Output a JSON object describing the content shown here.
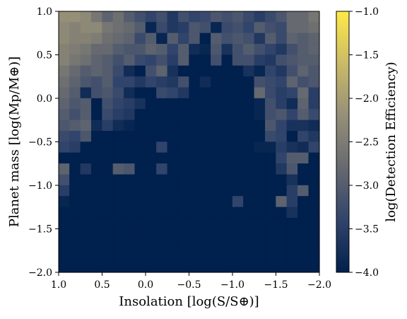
{
  "chart_data": {
    "type": "heatmap",
    "xlabel": "Insolation [log(S/S⊕)]",
    "ylabel": "Planet mass [log(Mp/M⊕)]",
    "colorbar_label": "log(Detection Efficiency)",
    "xlim": [
      1.0,
      -2.0
    ],
    "ylim": [
      -2.0,
      1.0
    ],
    "clim": [
      -4.0,
      -1.0
    ],
    "colormap": "cividis",
    "colormap_stops": [
      "#00204D",
      "#31446B",
      "#666970",
      "#958F78",
      "#CBBA69",
      "#FFEA46"
    ],
    "x_bins": 24,
    "y_bins": 24,
    "x_ticks": [
      "1.0",
      "0.5",
      "0.0",
      "−0.5",
      "−1.0",
      "−1.5",
      "−2.0"
    ],
    "y_ticks": [
      "1.0",
      "0.5",
      "0.0",
      "−0.5",
      "−1.0",
      "−1.5",
      "−2.0"
    ],
    "colorbar_ticks": [
      "−1.0",
      "−1.5",
      "−2.0",
      "−2.5",
      "−3.0",
      "−3.5",
      "−4.0"
    ],
    "cell_values_top_row_first": [
      [
        -2.2,
        -2.2,
        -2.3,
        -2.6,
        -2.9,
        -2.7,
        -3.0,
        -3.2,
        -3.4,
        -3.2,
        -3.6,
        -3.2,
        -3.4,
        -3.3,
        -3.1,
        -3.2,
        -3.1,
        -3.3,
        -3.5,
        -3.3,
        -3.1,
        -2.8,
        -2.8,
        -2.6
      ],
      [
        -2.3,
        -2.4,
        -2.3,
        -2.3,
        -2.6,
        -2.7,
        -2.8,
        -3.0,
        -3.9,
        -3.3,
        -3.6,
        -3.5,
        -3.1,
        -3.2,
        -3.9,
        -3.3,
        -3.2,
        -3.4,
        -3.0,
        -3.2,
        -3.3,
        -2.8,
        -2.8,
        -2.7
      ],
      [
        -2.3,
        -2.4,
        -2.4,
        -2.5,
        -2.7,
        -2.8,
        -2.9,
        -3.3,
        -3.0,
        -3.9,
        -3.0,
        -3.4,
        -3.1,
        -4.0,
        -3.0,
        -3.2,
        -3.1,
        -3.2,
        -3.6,
        -3.0,
        -3.3,
        -2.9,
        -3.0,
        -2.9
      ],
      [
        -2.4,
        -2.5,
        -2.6,
        -2.8,
        -2.8,
        -3.0,
        -3.1,
        -3.1,
        -2.9,
        -3.0,
        -3.4,
        -3.0,
        -3.8,
        -3.9,
        -3.1,
        -3.7,
        -3.2,
        -3.0,
        -3.2,
        -3.4,
        -3.6,
        -3.2,
        -3.0,
        -2.9
      ],
      [
        -2.4,
        -2.6,
        -2.7,
        -2.9,
        -3.0,
        -3.2,
        -3.0,
        -3.3,
        -3.4,
        -3.2,
        -3.5,
        -3.0,
        -4.0,
        -4.0,
        -3.2,
        -4.0,
        -3.2,
        -3.2,
        -3.5,
        -3.6,
        -3.2,
        -3.1,
        -3.0,
        -3.0
      ],
      [
        -2.6,
        -2.8,
        -3.0,
        -2.9,
        -3.0,
        -3.3,
        -3.8,
        -4.0,
        -3.2,
        -2.9,
        -3.7,
        -4.0,
        -4.0,
        -4.0,
        -4.0,
        -4.0,
        -4.0,
        -3.7,
        -3.9,
        -3.4,
        -3.6,
        -3.2,
        -2.9,
        -3.1
      ],
      [
        -2.7,
        -2.9,
        -3.1,
        -3.2,
        -3.0,
        -3.4,
        -3.4,
        -3.6,
        -3.4,
        -3.5,
        -3.6,
        -3.2,
        -4.0,
        -3.8,
        -4.0,
        -4.0,
        -4.0,
        -4.0,
        -3.2,
        -3.3,
        -3.4,
        -2.9,
        -3.2,
        -3.1
      ],
      [
        -2.8,
        -3.0,
        -3.8,
        -3.2,
        -3.1,
        -3.3,
        -3.8,
        -4.0,
        -4.0,
        -3.3,
        -3.4,
        -3.6,
        -4.0,
        -4.0,
        -4.0,
        -4.0,
        -4.0,
        -4.0,
        -2.8,
        -3.3,
        -3.5,
        -3.4,
        -2.8,
        -3.5
      ],
      [
        -2.9,
        -3.1,
        -3.0,
        -4.0,
        -3.2,
        -3.4,
        -3.5,
        -3.7,
        -4.0,
        -4.0,
        -4.0,
        -4.0,
        -4.0,
        -4.0,
        -4.0,
        -4.0,
        -4.0,
        -4.0,
        -3.9,
        -3.2,
        -3.5,
        -3.8,
        -2.9,
        -3.5
      ],
      [
        -3.0,
        -3.2,
        -3.0,
        -4.0,
        -3.3,
        -3.5,
        -3.6,
        -4.0,
        -4.0,
        -4.0,
        -4.0,
        -4.0,
        -4.0,
        -4.0,
        -4.0,
        -4.0,
        -4.0,
        -4.0,
        -3.9,
        -3.2,
        -3.1,
        -3.4,
        -3.0,
        -3.3
      ],
      [
        -3.1,
        -3.0,
        -2.9,
        -3.8,
        -3.5,
        -3.8,
        -3.9,
        -4.0,
        -4.0,
        -4.0,
        -4.0,
        -4.0,
        -4.0,
        -4.0,
        -4.0,
        -4.0,
        -4.0,
        -4.0,
        -4.0,
        -3.1,
        -3.4,
        -3.7,
        -3.7,
        -3.8
      ],
      [
        -3.3,
        -3.4,
        -3.1,
        -4.0,
        -4.0,
        -4.0,
        -4.0,
        -4.0,
        -4.0,
        -4.0,
        -4.0,
        -4.0,
        -4.0,
        -4.0,
        -4.0,
        -4.0,
        -4.0,
        -4.0,
        -4.0,
        -3.3,
        -3.4,
        -4.0,
        -3.4,
        -3.6
      ],
      [
        -3.4,
        -3.5,
        -4.0,
        -4.0,
        -4.0,
        -4.0,
        -4.0,
        -4.0,
        -4.0,
        -3.4,
        -4.0,
        -4.0,
        -4.0,
        -4.0,
        -4.0,
        -4.0,
        -4.0,
        -4.0,
        -3.9,
        -3.9,
        -3.5,
        -3.7,
        -3.8,
        -3.4
      ],
      [
        -4.0,
        -4.0,
        -4.0,
        -4.0,
        -4.0,
        -4.0,
        -4.0,
        -4.0,
        -4.0,
        -4.0,
        -4.0,
        -4.0,
        -4.0,
        -4.0,
        -4.0,
        -4.0,
        -4.0,
        -4.0,
        -4.0,
        -4.0,
        -3.4,
        -3.0,
        -3.0,
        -4.0
      ],
      [
        -2.9,
        -4.0,
        -3.6,
        -4.0,
        -4.0,
        -3.0,
        -3.1,
        -4.0,
        -4.0,
        -3.4,
        -4.0,
        -4.0,
        -4.0,
        -4.0,
        -4.0,
        -4.0,
        -4.0,
        -4.0,
        -4.0,
        -4.0,
        -3.6,
        -3.1,
        -4.0,
        -4.0
      ],
      [
        -3.2,
        -4.0,
        -4.0,
        -4.0,
        -4.0,
        -4.0,
        -4.0,
        -4.0,
        -4.0,
        -4.0,
        -4.0,
        -4.0,
        -4.0,
        -4.0,
        -4.0,
        -4.0,
        -4.0,
        -4.0,
        -4.0,
        -4.0,
        -4.0,
        -3.7,
        -4.0,
        -4.0
      ],
      [
        -3.5,
        -4.0,
        -4.0,
        -4.0,
        -4.0,
        -4.0,
        -4.0,
        -4.0,
        -4.0,
        -4.0,
        -4.0,
        -4.0,
        -4.0,
        -4.0,
        -4.0,
        -4.0,
        -4.0,
        -4.0,
        -4.0,
        -4.0,
        -4.0,
        -3.5,
        -3.0,
        -4.0
      ],
      [
        -3.9,
        -4.0,
        -4.0,
        -4.0,
        -4.0,
        -4.0,
        -4.0,
        -4.0,
        -4.0,
        -4.0,
        -4.0,
        -4.0,
        -4.0,
        -4.0,
        -4.0,
        -4.0,
        -3.4,
        -4.0,
        -4.0,
        -4.0,
        -2.9,
        -3.5,
        -4.0,
        -4.0
      ],
      [
        -4.0,
        -4.0,
        -4.0,
        -4.0,
        -4.0,
        -4.0,
        -4.0,
        -4.0,
        -4.0,
        -4.0,
        -4.0,
        -4.0,
        -4.0,
        -4.0,
        -4.0,
        -4.0,
        -4.0,
        -4.0,
        -4.0,
        -4.0,
        -4.0,
        -3.7,
        -4.0,
        -4.0
      ],
      [
        -4.0,
        -4.0,
        -4.0,
        -4.0,
        -4.0,
        -4.0,
        -4.0,
        -4.0,
        -4.0,
        -4.0,
        -4.0,
        -4.0,
        -4.0,
        -4.0,
        -4.0,
        -4.0,
        -4.0,
        -4.0,
        -4.0,
        -4.0,
        -4.0,
        -4.0,
        -4.0,
        -4.0
      ],
      [
        -4.0,
        -4.0,
        -4.0,
        -4.0,
        -4.0,
        -4.0,
        -4.0,
        -4.0,
        -4.0,
        -4.0,
        -4.0,
        -4.0,
        -4.0,
        -4.0,
        -4.0,
        -4.0,
        -4.0,
        -4.0,
        -4.0,
        -4.0,
        -4.0,
        -4.0,
        -4.0,
        -4.0
      ],
      [
        -4.0,
        -4.0,
        -4.0,
        -4.0,
        -4.0,
        -4.0,
        -4.0,
        -4.0,
        -4.0,
        -4.0,
        -4.0,
        -4.0,
        -4.0,
        -4.0,
        -4.0,
        -4.0,
        -4.0,
        -4.0,
        -4.0,
        -4.0,
        -4.0,
        -4.0,
        -4.0,
        -4.0
      ],
      [
        -4.0,
        -4.0,
        -4.0,
        -4.0,
        -4.0,
        -4.0,
        -4.0,
        -4.0,
        -4.0,
        -4.0,
        -4.0,
        -4.0,
        -4.0,
        -4.0,
        -4.0,
        -4.0,
        -4.0,
        -4.0,
        -4.0,
        -4.0,
        -4.0,
        -4.0,
        -4.0,
        -4.0
      ],
      [
        -4.0,
        -4.0,
        -4.0,
        -4.0,
        -4.0,
        -4.0,
        -4.0,
        -4.0,
        -4.0,
        -4.0,
        -4.0,
        -4.0,
        -4.0,
        -4.0,
        -4.0,
        -4.0,
        -4.0,
        -4.0,
        -4.0,
        -4.0,
        -4.0,
        -4.0,
        -4.0,
        -4.0
      ]
    ]
  }
}
